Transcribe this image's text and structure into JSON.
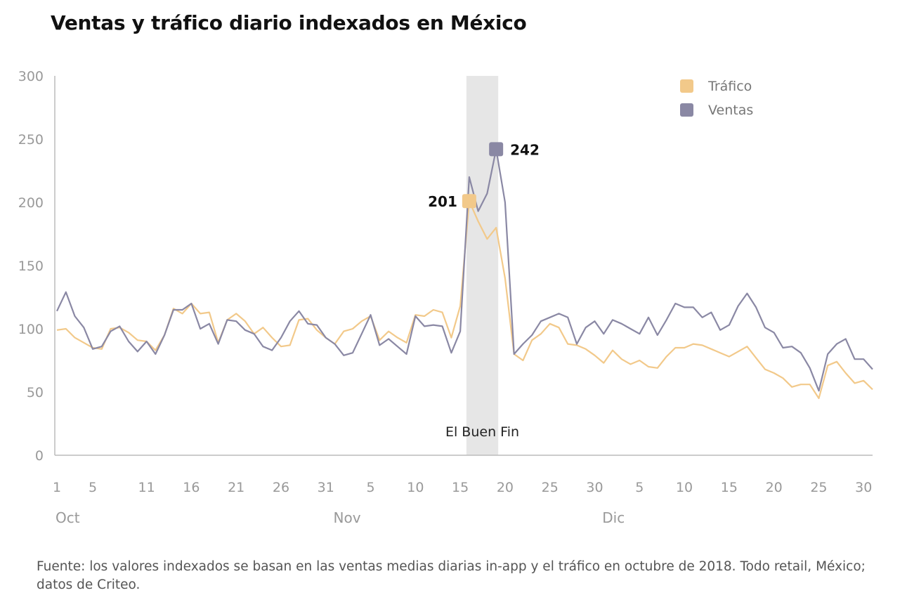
{
  "title": "Ventas y tráfico diario indexados en México",
  "source_note": "Fuente: los valores indexados se basan en las ventas medias diarias in-app y el tráfico en octubre de 2018. Todo retail, México; datos de Criteo.",
  "colors": {
    "trafico": "#f2c98a",
    "ventas": "#8a88a4",
    "band": "#e6e6e6",
    "axis": "#bbbbbb",
    "tick_text": "#999999"
  },
  "chart_data": {
    "type": "line",
    "title": "Ventas y tráfico diario indexados en México",
    "ylim": [
      0,
      300
    ],
    "y_ticks": [
      0,
      50,
      100,
      150,
      200,
      250,
      300
    ],
    "x_tick_labels": [
      "1",
      "5",
      "11",
      "16",
      "21",
      "26",
      "31",
      "5",
      "10",
      "15",
      "20",
      "25",
      "30",
      "5",
      "10",
      "15",
      "20",
      "25",
      "30"
    ],
    "x_tick_days": [
      1,
      5,
      11,
      16,
      21,
      26,
      31,
      36,
      41,
      46,
      51,
      56,
      61,
      66,
      71,
      76,
      81,
      86,
      91
    ],
    "month_labels": [
      "Oct",
      "Nov",
      "Dic"
    ],
    "month_label_days": [
      1,
      32,
      62
    ],
    "legend_position": "top-right",
    "highlight_band": {
      "label": "El Buen Fin",
      "from_day": 47,
      "to_day": 50
    },
    "annotations": [
      {
        "series": "Tráfico",
        "day": 47,
        "value": 201,
        "label": "201"
      },
      {
        "series": "Ventas",
        "day": 50,
        "value": 242,
        "label": "242"
      }
    ],
    "series": [
      {
        "name": "Tráfico",
        "values": [
          99,
          100,
          93,
          89,
          85,
          84,
          100,
          101,
          97,
          91,
          90,
          83,
          95,
          116,
          112,
          120,
          112,
          113,
          89,
          107,
          112,
          106,
          96,
          101,
          93,
          86,
          87,
          107,
          108,
          99,
          93,
          88,
          98,
          100,
          106,
          110,
          91,
          98,
          93,
          89,
          111,
          110,
          115,
          113,
          93,
          118,
          201,
          185,
          171,
          180,
          140,
          80,
          75,
          91,
          96,
          104,
          101,
          88,
          87,
          84,
          79,
          73,
          83,
          76,
          72,
          75,
          70,
          69,
          78,
          85,
          85,
          88,
          87,
          84,
          81,
          78,
          82,
          86,
          77,
          68,
          65,
          61,
          54,
          56,
          56,
          45,
          71,
          74,
          65,
          57,
          59,
          52
        ]
      },
      {
        "name": "Ventas",
        "values": [
          114,
          129,
          110,
          101,
          84,
          86,
          98,
          102,
          90,
          82,
          90,
          80,
          95,
          115,
          115,
          120,
          100,
          104,
          88,
          107,
          106,
          99,
          96,
          86,
          83,
          93,
          106,
          114,
          104,
          103,
          93,
          88,
          79,
          81,
          96,
          111,
          87,
          92,
          86,
          80,
          110,
          102,
          103,
          102,
          81,
          98,
          220,
          193,
          207,
          242,
          200,
          80,
          88,
          95,
          106,
          109,
          112,
          109,
          88,
          101,
          106,
          96,
          107,
          104,
          100,
          96,
          109,
          95,
          107,
          120,
          117,
          117,
          109,
          113,
          99,
          103,
          118,
          128,
          117,
          101,
          97,
          85,
          86,
          81,
          69,
          51,
          80,
          88,
          92,
          76,
          76,
          68
        ]
      }
    ]
  }
}
